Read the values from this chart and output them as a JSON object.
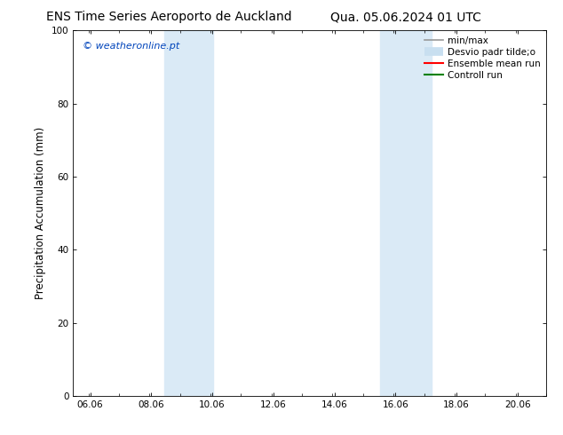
{
  "title_left": "ENS Time Series Aeroporto de Auckland",
  "title_right": "Qua. 05.06.2024 01 UTC",
  "ylabel": "Precipitation Accumulation (mm)",
  "watermark": "© weatheronline.pt",
  "watermark_color": "#0044bb",
  "ylim": [
    0,
    100
  ],
  "xlim_start": 5.5,
  "xlim_end": 21.0,
  "xticks": [
    6.06,
    8.06,
    10.06,
    12.06,
    14.06,
    16.06,
    18.06,
    20.06
  ],
  "xtick_labels": [
    "06.06",
    "08.06",
    "10.06",
    "12.06",
    "14.06",
    "16.06",
    "18.06",
    "20.06"
  ],
  "yticks": [
    0,
    20,
    40,
    60,
    80,
    100
  ],
  "shaded_regions": [
    {
      "xmin": 8.5,
      "xmax": 10.1,
      "color": "#daeaf6",
      "alpha": 1.0
    },
    {
      "xmin": 15.55,
      "xmax": 17.25,
      "color": "#daeaf6",
      "alpha": 1.0
    }
  ],
  "legend_entries": [
    {
      "label": "min/max",
      "color": "#999999",
      "lw": 1.2,
      "style": "solid"
    },
    {
      "label": "Desvio padr tilde;o",
      "color": "#c8dff0",
      "lw": 7,
      "style": "solid"
    },
    {
      "label": "Ensemble mean run",
      "color": "red",
      "lw": 1.5,
      "style": "solid"
    },
    {
      "label": "Controll run",
      "color": "green",
      "lw": 1.5,
      "style": "solid"
    }
  ],
  "bg_color": "#ffffff",
  "plot_bg_color": "#ffffff",
  "title_fontsize": 10,
  "tick_fontsize": 7.5,
  "label_fontsize": 8.5,
  "legend_fontsize": 7.5,
  "watermark_fontsize": 8
}
